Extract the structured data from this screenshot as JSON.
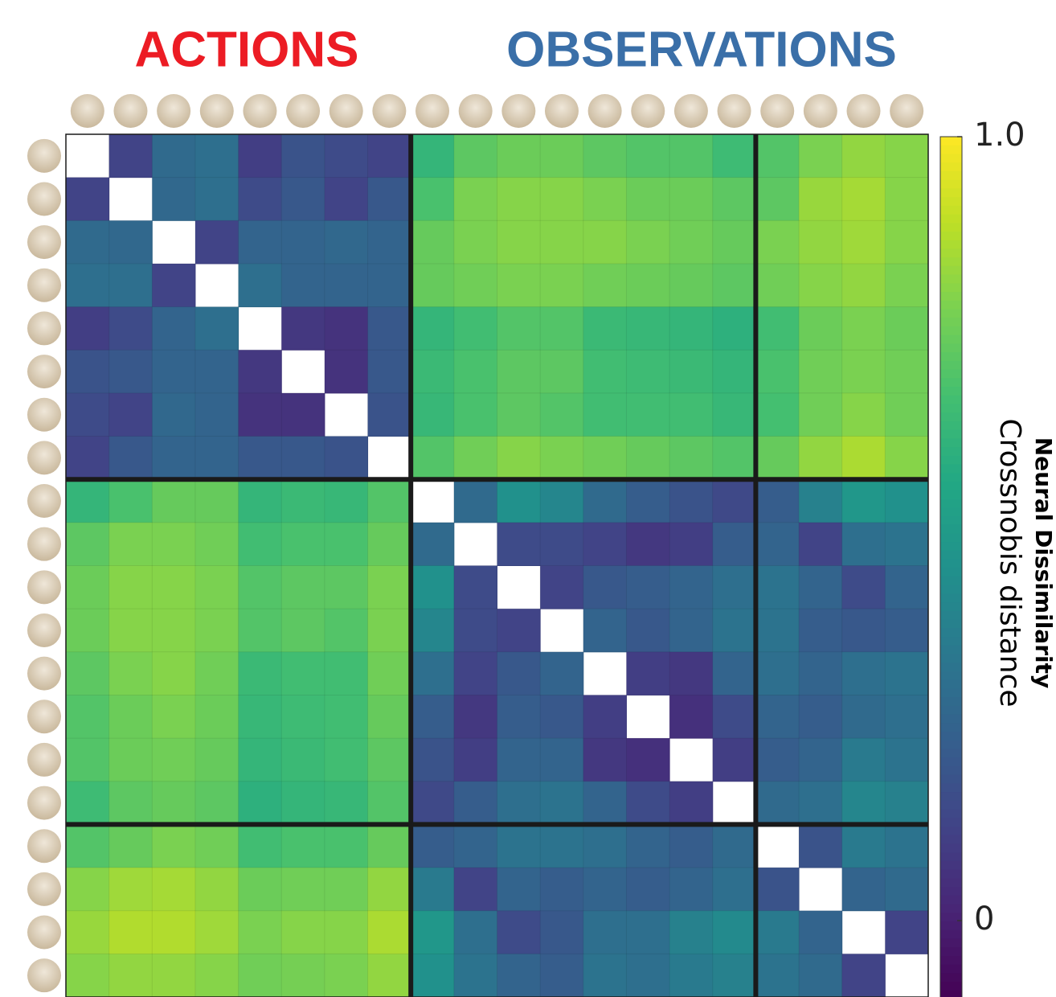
{
  "chart_data": {
    "type": "heatmap",
    "group_titles": [
      {
        "text": "ACTIONS",
        "color": "#ec1c24"
      },
      {
        "text": "OBSERVATIONS",
        "color": "#3a6fa8"
      }
    ],
    "side_title": "Neural Dissimilarity",
    "colorbar_label": "Crossnobis distance",
    "colormap": "viridis",
    "clim": [
      -0.1,
      1.0
    ],
    "cticks": [
      {
        "value": 1.0,
        "label": "1.0"
      },
      0
    ],
    "values": [
      [
        null,
        0.12,
        0.28,
        0.3,
        0.1,
        0.18,
        0.15,
        0.12,
        0.62,
        0.72,
        0.75,
        0.75,
        0.72,
        0.7,
        0.7,
        0.65,
        0.7,
        0.78,
        0.82,
        0.8
      ],
      [
        0.12,
        null,
        0.27,
        0.3,
        0.15,
        0.2,
        0.12,
        0.2,
        0.68,
        0.78,
        0.8,
        0.8,
        0.78,
        0.75,
        0.75,
        0.72,
        0.72,
        0.83,
        0.85,
        0.8
      ],
      [
        0.28,
        0.27,
        null,
        0.12,
        0.25,
        0.25,
        0.27,
        0.25,
        0.74,
        0.78,
        0.8,
        0.8,
        0.8,
        0.78,
        0.76,
        0.74,
        0.78,
        0.82,
        0.84,
        0.8
      ],
      [
        0.3,
        0.3,
        0.12,
        null,
        0.3,
        0.25,
        0.25,
        0.25,
        0.74,
        0.76,
        0.78,
        0.78,
        0.76,
        0.75,
        0.74,
        0.72,
        0.76,
        0.8,
        0.82,
        0.78
      ],
      [
        0.1,
        0.15,
        0.25,
        0.3,
        null,
        0.08,
        0.06,
        0.2,
        0.62,
        0.66,
        0.7,
        0.7,
        0.64,
        0.63,
        0.62,
        0.6,
        0.66,
        0.75,
        0.78,
        0.75
      ],
      [
        0.18,
        0.2,
        0.25,
        0.25,
        0.08,
        null,
        0.06,
        0.2,
        0.64,
        0.68,
        0.72,
        0.72,
        0.66,
        0.65,
        0.64,
        0.62,
        0.68,
        0.76,
        0.78,
        0.76
      ],
      [
        0.15,
        0.12,
        0.27,
        0.25,
        0.06,
        0.06,
        null,
        0.18,
        0.63,
        0.68,
        0.72,
        0.7,
        0.66,
        0.66,
        0.66,
        0.63,
        0.67,
        0.76,
        0.8,
        0.76
      ],
      [
        0.12,
        0.2,
        0.25,
        0.25,
        0.2,
        0.2,
        0.18,
        null,
        0.7,
        0.76,
        0.8,
        0.78,
        0.76,
        0.74,
        0.72,
        0.7,
        0.74,
        0.82,
        0.86,
        0.8
      ],
      [
        0.62,
        0.68,
        0.74,
        0.74,
        0.62,
        0.64,
        0.63,
        0.7,
        null,
        0.28,
        0.45,
        0.4,
        0.28,
        0.22,
        0.18,
        0.14,
        0.22,
        0.38,
        0.48,
        0.45
      ],
      [
        0.72,
        0.78,
        0.78,
        0.76,
        0.66,
        0.68,
        0.68,
        0.74,
        0.28,
        null,
        0.15,
        0.15,
        0.12,
        0.08,
        0.1,
        0.22,
        0.25,
        0.12,
        0.3,
        0.32
      ],
      [
        0.75,
        0.8,
        0.8,
        0.78,
        0.7,
        0.72,
        0.72,
        0.78,
        0.45,
        0.15,
        null,
        0.12,
        0.2,
        0.22,
        0.25,
        0.3,
        0.32,
        0.25,
        0.15,
        0.25
      ],
      [
        0.75,
        0.8,
        0.8,
        0.78,
        0.7,
        0.72,
        0.7,
        0.78,
        0.4,
        0.15,
        0.12,
        null,
        0.25,
        0.2,
        0.25,
        0.32,
        0.32,
        0.22,
        0.2,
        0.22
      ],
      [
        0.72,
        0.78,
        0.8,
        0.76,
        0.64,
        0.66,
        0.66,
        0.76,
        0.3,
        0.12,
        0.2,
        0.25,
        null,
        0.1,
        0.08,
        0.25,
        0.3,
        0.25,
        0.3,
        0.32
      ],
      [
        0.7,
        0.75,
        0.78,
        0.75,
        0.63,
        0.65,
        0.66,
        0.74,
        0.22,
        0.08,
        0.22,
        0.2,
        0.1,
        null,
        0.05,
        0.15,
        0.25,
        0.22,
        0.28,
        0.3
      ],
      [
        0.7,
        0.75,
        0.76,
        0.74,
        0.62,
        0.64,
        0.66,
        0.72,
        0.18,
        0.1,
        0.25,
        0.25,
        0.08,
        0.05,
        null,
        0.1,
        0.22,
        0.25,
        0.35,
        0.32
      ],
      [
        0.65,
        0.72,
        0.74,
        0.72,
        0.6,
        0.62,
        0.63,
        0.7,
        0.14,
        0.22,
        0.3,
        0.32,
        0.25,
        0.15,
        0.1,
        null,
        0.28,
        0.3,
        0.4,
        0.38
      ],
      [
        0.7,
        0.74,
        0.78,
        0.76,
        0.66,
        0.68,
        0.68,
        0.74,
        0.22,
        0.25,
        0.32,
        0.32,
        0.3,
        0.25,
        0.22,
        0.28,
        null,
        0.18,
        0.35,
        0.32
      ],
      [
        0.8,
        0.84,
        0.85,
        0.82,
        0.75,
        0.76,
        0.76,
        0.82,
        0.35,
        0.12,
        0.25,
        0.22,
        0.25,
        0.22,
        0.25,
        0.3,
        0.18,
        null,
        0.25,
        0.28
      ],
      [
        0.83,
        0.87,
        0.87,
        0.84,
        0.78,
        0.8,
        0.8,
        0.86,
        0.48,
        0.3,
        0.15,
        0.2,
        0.3,
        0.3,
        0.38,
        0.42,
        0.35,
        0.25,
        null,
        0.12
      ],
      [
        0.8,
        0.82,
        0.82,
        0.8,
        0.76,
        0.77,
        0.78,
        0.82,
        0.45,
        0.32,
        0.25,
        0.22,
        0.32,
        0.3,
        0.35,
        0.38,
        0.32,
        0.28,
        0.12,
        null
      ]
    ]
  }
}
